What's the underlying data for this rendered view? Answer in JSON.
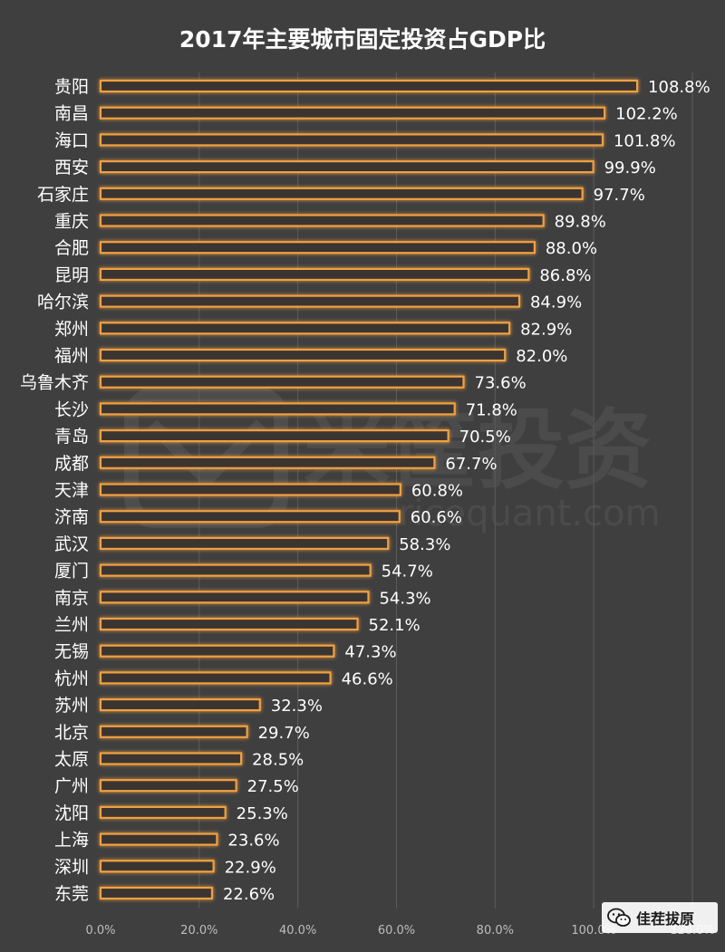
{
  "chart_data": {
    "type": "bar",
    "orientation": "horizontal",
    "title": "2017年主要城市固定投资占GDP比",
    "categories": [
      "贵阳",
      "南昌",
      "海口",
      "西安",
      "石家庄",
      "重庆",
      "合肥",
      "昆明",
      "哈尔滨",
      "郑州",
      "福州",
      "乌鲁木齐",
      "长沙",
      "青岛",
      "成都",
      "天津",
      "济南",
      "武汉",
      "厦门",
      "南京",
      "兰州",
      "无锡",
      "杭州",
      "苏州",
      "北京",
      "太原",
      "广州",
      "沈阳",
      "上海",
      "深圳",
      "东莞"
    ],
    "values": [
      108.8,
      102.2,
      101.8,
      99.9,
      97.7,
      89.8,
      88.0,
      86.8,
      84.9,
      82.9,
      82.0,
      73.6,
      71.8,
      70.5,
      67.7,
      60.8,
      60.6,
      58.3,
      54.7,
      54.3,
      52.1,
      47.3,
      46.6,
      32.3,
      29.7,
      28.5,
      27.5,
      25.3,
      23.6,
      22.9,
      22.6
    ],
    "value_labels": [
      "108.8%",
      "102.2%",
      "101.8%",
      "99.9%",
      "97.7%",
      "89.8%",
      "88.0%",
      "86.8%",
      "84.9%",
      "82.9%",
      "82.0%",
      "73.6%",
      "71.8%",
      "70.5%",
      "67.7%",
      "60.8%",
      "60.6%",
      "58.3%",
      "54.7%",
      "54.3%",
      "52.1%",
      "47.3%",
      "46.6%",
      "32.3%",
      "29.7%",
      "28.5%",
      "27.5%",
      "25.3%",
      "23.6%",
      "22.9%",
      "22.6%"
    ],
    "xlim": [
      0,
      120
    ],
    "x_ticks": [
      0,
      20,
      40,
      60,
      80,
      100,
      120
    ],
    "x_tick_labels": [
      "0.0%",
      "20.0%",
      "40.0%",
      "60.0%",
      "80.0%",
      "100.0%",
      "120.0%"
    ],
    "grid": "vertical",
    "legend": "none",
    "xlabel": "",
    "ylabel": ""
  },
  "colors": {
    "background": "#3f3f3f",
    "bar_outline": "#f0a042",
    "bar_glow": "#e07a10",
    "bar_fill": "#3a3430",
    "grid": "#5c5c5c",
    "text": "#ffffff",
    "tick_text": "#bdbdbd"
  },
  "watermark": {
    "brand_text": "米筐投资",
    "url_text": "ricequant.com"
  },
  "footer": {
    "icon": "wechat-icon",
    "account_name": "佳茬拔原"
  }
}
